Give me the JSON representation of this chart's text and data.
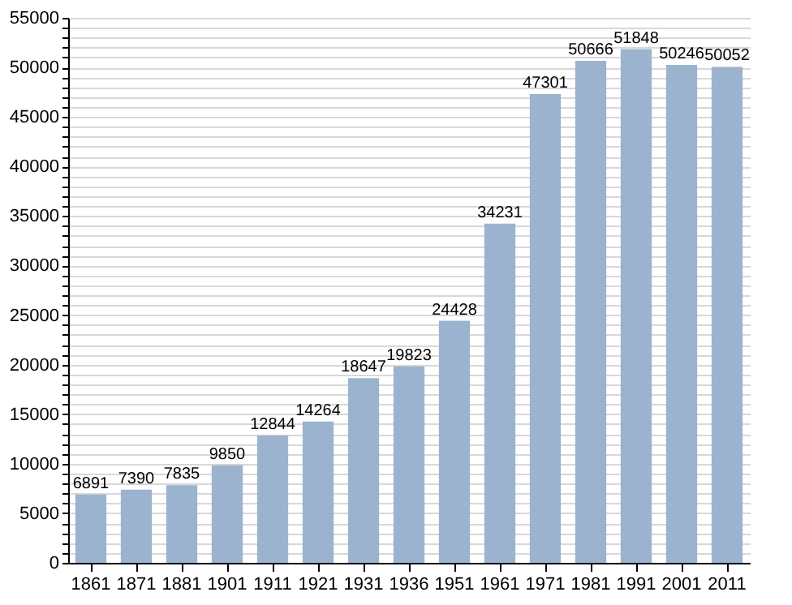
{
  "chart_data": {
    "type": "bar",
    "categories": [
      "1861",
      "1871",
      "1881",
      "1901",
      "1911",
      "1921",
      "1931",
      "1936",
      "1951",
      "1961",
      "1971",
      "1981",
      "1991",
      "2001",
      "2011"
    ],
    "values": [
      6891,
      7390,
      7835,
      9850,
      12844,
      14264,
      18647,
      19823,
      24428,
      34231,
      47301,
      50666,
      51848,
      50246,
      50052
    ],
    "color": "#9cb3cf",
    "data_labels": true,
    "grid": "y",
    "ylim": [
      0,
      55000
    ],
    "yticks": [
      0,
      {
        "value": 1000,
        "label": null
      },
      {
        "value": 2000,
        "label": null
      },
      {
        "value": 3000,
        "label": null
      },
      {
        "value": 4000,
        "label": null
      },
      5000,
      {
        "value": 6000,
        "label": null
      },
      {
        "value": 7000,
        "label": null
      },
      {
        "value": 8000,
        "label": null
      },
      {
        "value": 9000,
        "label": null
      },
      10000,
      {
        "value": 11000,
        "label": null
      },
      {
        "value": 12000,
        "label": null
      },
      {
        "value": 13000,
        "label": null
      },
      {
        "value": 14000,
        "label": null
      },
      15000,
      {
        "value": 16000,
        "label": null
      },
      {
        "value": 17000,
        "label": null
      },
      {
        "value": 18000,
        "label": null
      },
      {
        "value": 19000,
        "label": null
      },
      20000,
      {
        "value": 21000,
        "label": null
      },
      {
        "value": 22000,
        "label": null
      },
      {
        "value": 23000,
        "label": null
      },
      {
        "value": 24000,
        "label": null
      },
      25000,
      {
        "value": 26000,
        "label": null
      },
      {
        "value": 27000,
        "label": null
      },
      {
        "value": 28000,
        "label": null
      },
      {
        "value": 29000,
        "label": null
      },
      30000,
      {
        "value": 31000,
        "label": null
      },
      {
        "value": 32000,
        "label": null
      },
      {
        "value": 33000,
        "label": null
      },
      {
        "value": 34000,
        "label": null
      },
      35000,
      {
        "value": 36000,
        "label": null
      },
      {
        "value": 37000,
        "label": null
      },
      {
        "value": 38000,
        "label": null
      },
      {
        "value": 39000,
        "label": null
      },
      40000,
      {
        "value": 41000,
        "label": null
      },
      {
        "value": 42000,
        "label": null
      },
      {
        "value": 43000,
        "label": null
      },
      {
        "value": 44000,
        "label": null
      },
      45000,
      {
        "value": 46000,
        "label": null
      },
      {
        "value": 47000,
        "label": null
      },
      {
        "value": 48000,
        "label": null
      },
      {
        "value": 49000,
        "label": null
      },
      50000,
      {
        "value": 51000,
        "label": null
      },
      {
        "value": 52000,
        "label": null
      },
      {
        "value": 53000,
        "label": null
      },
      {
        "value": 54000,
        "label": null
      },
      55000
    ]
  }
}
